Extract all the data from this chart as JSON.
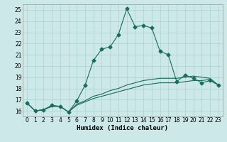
{
  "title": "",
  "xlabel": "Humidex (Indice chaleur)",
  "ylabel": "",
  "bg_color": "#cce8e8",
  "grid_color": "#aad0d0",
  "line_color": "#1a6b5a",
  "xlim": [
    -0.5,
    23.5
  ],
  "ylim": [
    15.5,
    25.5
  ],
  "xticks": [
    0,
    1,
    2,
    3,
    4,
    5,
    6,
    7,
    8,
    9,
    10,
    11,
    12,
    13,
    14,
    15,
    16,
    17,
    18,
    19,
    20,
    21,
    22,
    23
  ],
  "yticks": [
    16,
    17,
    18,
    19,
    20,
    21,
    22,
    23,
    24,
    25
  ],
  "series": [
    {
      "x": [
        0,
        1,
        2,
        3,
        4,
        5,
        6,
        7,
        8,
        9,
        10,
        11,
        12,
        13,
        14,
        15,
        16,
        17,
        18,
        19,
        20,
        21,
        22,
        23
      ],
      "y": [
        16.7,
        16.0,
        16.1,
        16.5,
        16.4,
        15.9,
        16.9,
        18.3,
        20.5,
        21.5,
        21.7,
        22.8,
        25.1,
        23.5,
        23.6,
        23.4,
        21.3,
        21.0,
        18.6,
        19.2,
        18.9,
        18.5,
        18.7,
        18.3
      ],
      "marker": "D",
      "markersize": 2.5
    },
    {
      "x": [
        0,
        1,
        2,
        3,
        4,
        5,
        6,
        7,
        8,
        9,
        10,
        11,
        12,
        13,
        14,
        15,
        16,
        17,
        18,
        19,
        20,
        21,
        22,
        23
      ],
      "y": [
        16.7,
        16.0,
        16.1,
        16.4,
        16.4,
        15.9,
        16.5,
        16.8,
        17.1,
        17.3,
        17.5,
        17.7,
        17.9,
        18.1,
        18.3,
        18.4,
        18.5,
        18.5,
        18.5,
        18.6,
        18.7,
        18.7,
        18.8,
        18.3
      ],
      "marker": null,
      "markersize": 0
    },
    {
      "x": [
        0,
        1,
        2,
        3,
        4,
        5,
        6,
        7,
        8,
        9,
        10,
        11,
        12,
        13,
        14,
        15,
        16,
        17,
        18,
        19,
        20,
        21,
        22,
        23
      ],
      "y": [
        16.7,
        16.0,
        16.1,
        16.4,
        16.4,
        15.9,
        16.6,
        16.9,
        17.3,
        17.5,
        17.8,
        18.0,
        18.3,
        18.5,
        18.7,
        18.8,
        18.9,
        18.9,
        18.9,
        19.0,
        19.1,
        19.0,
        18.9,
        18.3
      ],
      "marker": null,
      "markersize": 0
    }
  ]
}
